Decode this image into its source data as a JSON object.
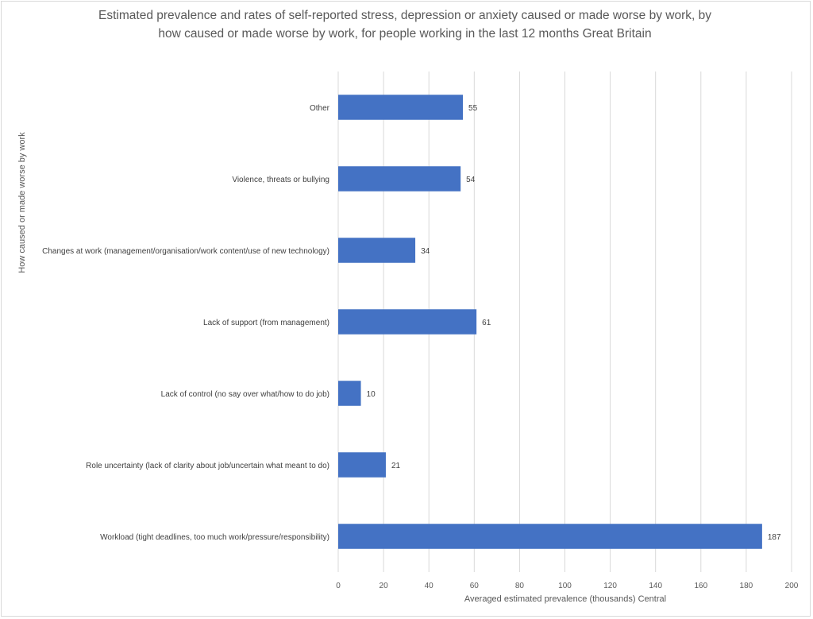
{
  "chart_data": {
    "type": "bar",
    "orientation": "horizontal",
    "title": "Estimated prevalence and rates of self-reported stress, depression or anxiety  caused or made worse by work, by how caused or made worse by work, for people working in the last 12 months Great Britain",
    "title_lines": [
      "Estimated prevalence and rates of self-reported stress, depression or anxiety  caused or made worse by work, by",
      "how caused or made worse by work, for people working in the last 12 months Great Britain"
    ],
    "xlabel": "Averaged estimated prevalence (thousands) Central",
    "ylabel": "How caused or made worse by work",
    "categories": [
      "Other",
      "Violence, threats or bullying",
      "Changes at work (management/organisation/work content/use of new technology)",
      "Lack of support (from management)",
      "Lack of control (no say over what/how to do job)",
      "Role uncertainty (lack of clarity about job/uncertain what meant to do)",
      "Workload (tight deadlines, too much work/pressure/responsibility)"
    ],
    "values": [
      55,
      54,
      34,
      61,
      10,
      21,
      187
    ],
    "data_labels": [
      "55",
      "54",
      "34",
      "61",
      "10",
      "21",
      "187"
    ],
    "xlim": [
      0,
      200
    ],
    "xticks": [
      0,
      20,
      40,
      60,
      80,
      100,
      120,
      140,
      160,
      180,
      200
    ],
    "grid": true,
    "bar_color": "#4472C4",
    "grid_color": "#d9d9d9"
  }
}
